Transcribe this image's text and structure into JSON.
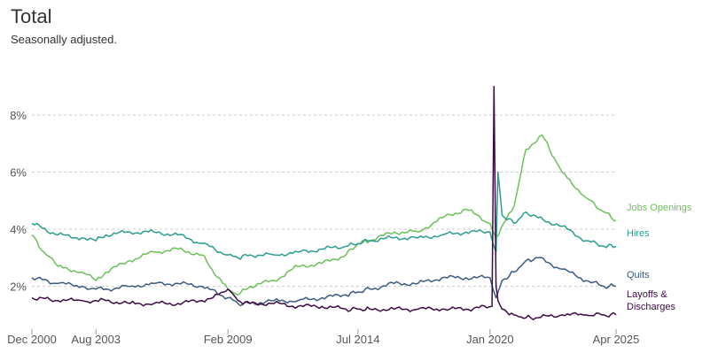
{
  "chart_data": {
    "type": "line",
    "title": "Total",
    "subtitle": "Seasonally adjusted.",
    "x_ticks": [
      "Dec 2000",
      "Aug 2003",
      "Feb 2009",
      "Jul 2014",
      "Jan 2020",
      "Apr 2025"
    ],
    "y_ticks": [
      "2%",
      "4%",
      "6%",
      "8%"
    ],
    "ylim": [
      0.5,
      9.3
    ],
    "grid": true,
    "legend": "inline-right",
    "series": [
      {
        "name": "Jobs Openings",
        "color": "#6cc05b",
        "points": [
          [
            "Dec 2000",
            3.8
          ],
          [
            "Jun 2001",
            3.2
          ],
          [
            "Jan 2002",
            2.7
          ],
          [
            "Jan 2003",
            2.5
          ],
          [
            "Aug 2003",
            2.2
          ],
          [
            "Jan 2004",
            2.5
          ],
          [
            "Jan 2005",
            2.9
          ],
          [
            "Jan 2006",
            3.2
          ],
          [
            "Jan 2007",
            3.3
          ],
          [
            "Jan 2008",
            3.1
          ],
          [
            "Jun 2008",
            2.6
          ],
          [
            "Feb 2009",
            1.9
          ],
          [
            "Jul 2009",
            1.7
          ],
          [
            "Jan 2010",
            2.0
          ],
          [
            "Jan 2011",
            2.2
          ],
          [
            "Jan 2012",
            2.7
          ],
          [
            "Jan 2013",
            2.8
          ],
          [
            "Jan 2014",
            3.1
          ],
          [
            "Jul 2014",
            3.5
          ],
          [
            "Jan 2015",
            3.6
          ],
          [
            "Jan 2016",
            3.9
          ],
          [
            "Jan 2017",
            3.9
          ],
          [
            "Jan 2018",
            4.4
          ],
          [
            "Jan 2019",
            4.7
          ],
          [
            "Jan 2020",
            4.2
          ],
          [
            "Apr 2020",
            3.7
          ],
          [
            "Jan 2021",
            4.8
          ],
          [
            "Jul 2021",
            6.8
          ],
          [
            "Mar 2022",
            7.3
          ],
          [
            "Jan 2023",
            6.0
          ],
          [
            "Jan 2024",
            5.1
          ],
          [
            "Oct 2024",
            4.6
          ],
          [
            "Apr 2025",
            4.3
          ]
        ]
      },
      {
        "name": "Hires",
        "color": "#2a9d8f",
        "points": [
          [
            "Dec 2000",
            4.2
          ],
          [
            "Jan 2002",
            3.8
          ],
          [
            "Jan 2003",
            3.7
          ],
          [
            "Aug 2003",
            3.6
          ],
          [
            "Jan 2004",
            3.8
          ],
          [
            "Jan 2005",
            3.9
          ],
          [
            "Jan 2006",
            3.9
          ],
          [
            "Jan 2007",
            3.8
          ],
          [
            "Jan 2008",
            3.5
          ],
          [
            "Feb 2009",
            3.1
          ],
          [
            "Jul 2009",
            3.0
          ],
          [
            "Jan 2010",
            3.1
          ],
          [
            "Jan 2011",
            3.1
          ],
          [
            "Jan 2012",
            3.2
          ],
          [
            "Jan 2013",
            3.3
          ],
          [
            "Jan 2014",
            3.4
          ],
          [
            "Jul 2014",
            3.5
          ],
          [
            "Jan 2015",
            3.6
          ],
          [
            "Jan 2016",
            3.7
          ],
          [
            "Jan 2017",
            3.7
          ],
          [
            "Jan 2018",
            3.8
          ],
          [
            "Jan 2019",
            3.9
          ],
          [
            "Jan 2020",
            3.9
          ],
          [
            "Apr 2020",
            3.2
          ],
          [
            "May 2020",
            6.0
          ],
          [
            "Jul 2020",
            4.5
          ],
          [
            "Jan 2021",
            4.2
          ],
          [
            "Jul 2021",
            4.6
          ],
          [
            "Jan 2022",
            4.4
          ],
          [
            "Jan 2023",
            4.1
          ],
          [
            "Jan 2024",
            3.6
          ],
          [
            "Oct 2024",
            3.4
          ],
          [
            "Apr 2025",
            3.4
          ]
        ]
      },
      {
        "name": "Quits",
        "color": "#3d5a80",
        "points": [
          [
            "Dec 2000",
            2.3
          ],
          [
            "Jan 2002",
            2.1
          ],
          [
            "Jan 2003",
            2.0
          ],
          [
            "Aug 2003",
            1.9
          ],
          [
            "Jan 2004",
            1.9
          ],
          [
            "Jan 2005",
            2.0
          ],
          [
            "Jan 2006",
            2.1
          ],
          [
            "Jan 2007",
            2.1
          ],
          [
            "Jan 2008",
            2.0
          ],
          [
            "Feb 2009",
            1.6
          ],
          [
            "Jul 2009",
            1.4
          ],
          [
            "Jan 2010",
            1.4
          ],
          [
            "Jan 2011",
            1.5
          ],
          [
            "Jan 2012",
            1.5
          ],
          [
            "Jan 2013",
            1.6
          ],
          [
            "Jan 2014",
            1.7
          ],
          [
            "Jul 2014",
            1.8
          ],
          [
            "Jan 2015",
            1.9
          ],
          [
            "Jan 2016",
            2.1
          ],
          [
            "Jan 2017",
            2.1
          ],
          [
            "Jan 2018",
            2.3
          ],
          [
            "Jan 2019",
            2.3
          ],
          [
            "Jan 2020",
            2.3
          ],
          [
            "Apr 2020",
            1.6
          ],
          [
            "Jul 2020",
            2.2
          ],
          [
            "Jan 2021",
            2.5
          ],
          [
            "Jul 2021",
            2.9
          ],
          [
            "Jan 2022",
            3.0
          ],
          [
            "Jan 2023",
            2.6
          ],
          [
            "Jan 2024",
            2.2
          ],
          [
            "Oct 2024",
            2.0
          ],
          [
            "Apr 2025",
            2.0
          ]
        ]
      },
      {
        "name": "Layoffs & Discharges",
        "color": "#3d0a45",
        "points": [
          [
            "Dec 2000",
            1.6
          ],
          [
            "Jan 2002",
            1.5
          ],
          [
            "Jan 2003",
            1.5
          ],
          [
            "Aug 2003",
            1.5
          ],
          [
            "Jan 2004",
            1.5
          ],
          [
            "Jan 2005",
            1.4
          ],
          [
            "Jan 2006",
            1.4
          ],
          [
            "Jan 2007",
            1.4
          ],
          [
            "Jan 2008",
            1.5
          ],
          [
            "Dec 2008",
            1.8
          ],
          [
            "Feb 2009",
            1.9
          ],
          [
            "Jul 2009",
            1.5
          ],
          [
            "Jan 2010",
            1.4
          ],
          [
            "Jan 2011",
            1.4
          ],
          [
            "Jan 2012",
            1.3
          ],
          [
            "Jan 2013",
            1.3
          ],
          [
            "Jan 2014",
            1.2
          ],
          [
            "Jul 2014",
            1.2
          ],
          [
            "Jan 2015",
            1.2
          ],
          [
            "Jan 2016",
            1.2
          ],
          [
            "Jan 2017",
            1.2
          ],
          [
            "Jan 2018",
            1.2
          ],
          [
            "Jan 2019",
            1.2
          ],
          [
            "Feb 2020",
            1.3
          ],
          [
            "Mar 2020",
            9.0
          ],
          [
            "Apr 2020",
            2.0
          ],
          [
            "May 2020",
            1.5
          ],
          [
            "Jul 2020",
            1.2
          ],
          [
            "Jan 2021",
            1.0
          ],
          [
            "Jul 2021",
            0.9
          ],
          [
            "Jan 2022",
            0.9
          ],
          [
            "Jan 2023",
            1.0
          ],
          [
            "Jan 2024",
            1.0
          ],
          [
            "Oct 2024",
            1.0
          ],
          [
            "Apr 2025",
            1.0
          ]
        ]
      }
    ],
    "series_label_colors": {
      "Jobs Openings": "#6cc05b",
      "Hires": "#2a9d8f",
      "Quits": "#3d5a80",
      "Layoffs & Discharges": "#3d0a45"
    }
  }
}
